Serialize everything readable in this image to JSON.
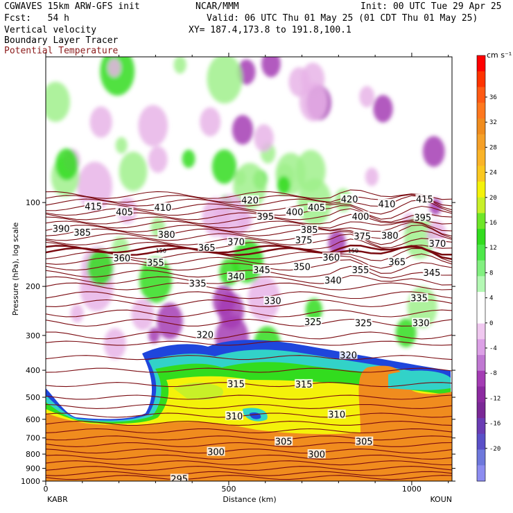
{
  "header": {
    "model": "CGWAVES 15km ARW-GFS init",
    "org": "NCAR/MMM",
    "init": "Init: 00 UTC Tue 29 Apr 25",
    "fcst": "Fcst:   54 h",
    "valid": "Valid: 06 UTC Thu 01 May 25 (01 CDT Thu 01 May 25)",
    "field1": "Vertical velocity",
    "field2": "Boundary Layer Tracer",
    "xy": "XY= 187.4,173.8 to 191.8,100.1",
    "field3": "Potential Temperature"
  },
  "colors": {
    "theta": "#7a0a10",
    "orange": "#f08c1e",
    "yellow": "#f4f20a",
    "green": "#32dc1e",
    "cyan": "#32d2c8",
    "blue": "#1e46dc",
    "purple": "#a43cb4",
    "pink": "#e8b4e8",
    "lightgreen": "#a0f08c"
  },
  "chart_data": {
    "type": "heatmap",
    "title": "",
    "xlabel": "Distance (km)",
    "ylabel": "Pressure (hPa), log scale",
    "xlim": [
      0,
      1110
    ],
    "ylim_log_pressure": [
      1000,
      30
    ],
    "x_ticks": [
      0,
      500,
      1000
    ],
    "y_ticks": [
      100,
      200,
      300,
      400,
      500,
      600,
      700,
      800,
      900,
      1000
    ],
    "endpoints": {
      "left": "KABR",
      "right": "KOUN"
    },
    "colorbar": {
      "units": "cm s⁻¹",
      "ticks": [
        36,
        32,
        28,
        24,
        20,
        16,
        12,
        8,
        4,
        0,
        -4,
        -8,
        -12,
        -16,
        -20
      ],
      "colors": [
        "#ff0000",
        "#ff3300",
        "#ff5a14",
        "#ff781e",
        "#f08c1e",
        "#f5a028",
        "#fab428",
        "#fac820",
        "#f4f20a",
        "#c8f028",
        "#6ee628",
        "#32dc1e",
        "#4ee84a",
        "#82f080",
        "#b4f8b4",
        "#ffffff",
        "#ffffff",
        "#f0c8f0",
        "#dca0e6",
        "#c078d2",
        "#a43cb4",
        "#8c2aa0",
        "#7a2896",
        "#6a3cb4",
        "#5a50c8",
        "#6e78dc",
        "#8c8cf0"
      ]
    },
    "theta_labels": [
      {
        "v": "415",
        "x": 130,
        "p": 103
      },
      {
        "v": "405",
        "x": 215,
        "p": 108
      },
      {
        "v": "410",
        "x": 320,
        "p": 104
      },
      {
        "v": "420",
        "x": 558,
        "p": 98
      },
      {
        "v": "395",
        "x": 600,
        "p": 112
      },
      {
        "v": "400",
        "x": 680,
        "p": 108
      },
      {
        "v": "405",
        "x": 740,
        "p": 104
      },
      {
        "v": "420",
        "x": 830,
        "p": 97
      },
      {
        "v": "410",
        "x": 932,
        "p": 101
      },
      {
        "v": "415",
        "x": 1035,
        "p": 97
      },
      {
        "v": "400",
        "x": 860,
        "p": 112
      },
      {
        "v": "395",
        "x": 1030,
        "p": 113
      },
      {
        "v": "390",
        "x": 42,
        "p": 124
      },
      {
        "v": "385",
        "x": 100,
        "p": 128
      },
      {
        "v": "380",
        "x": 330,
        "p": 130
      },
      {
        "v": "385",
        "x": 720,
        "p": 125
      },
      {
        "v": "375",
        "x": 865,
        "p": 132
      },
      {
        "v": "380",
        "x": 940,
        "p": 131
      },
      {
        "v": "375",
        "x": 705,
        "p": 136
      },
      {
        "v": "370",
        "x": 520,
        "p": 138
      },
      {
        "v": "365",
        "x": 440,
        "p": 145
      },
      {
        "v": "370",
        "x": 1070,
        "p": 140
      },
      {
        "v": "360",
        "x": 208,
        "p": 158
      },
      {
        "v": "355",
        "x": 300,
        "p": 164
      },
      {
        "v": "360",
        "x": 780,
        "p": 157
      },
      {
        "v": "350",
        "x": 700,
        "p": 170
      },
      {
        "v": "345",
        "x": 590,
        "p": 174
      },
      {
        "v": "355",
        "x": 860,
        "p": 174
      },
      {
        "v": "365",
        "x": 960,
        "p": 163
      },
      {
        "v": "345",
        "x": 1055,
        "p": 178
      },
      {
        "v": "340",
        "x": 520,
        "p": 184
      },
      {
        "v": "340",
        "x": 785,
        "p": 190
      },
      {
        "v": "335",
        "x": 415,
        "p": 195
      },
      {
        "v": "330",
        "x": 620,
        "p": 225
      },
      {
        "v": "335",
        "x": 1020,
        "p": 220
      },
      {
        "v": "325",
        "x": 730,
        "p": 268
      },
      {
        "v": "325",
        "x": 868,
        "p": 270
      },
      {
        "v": "330",
        "x": 1025,
        "p": 270
      },
      {
        "v": "320",
        "x": 435,
        "p": 298
      },
      {
        "v": "320",
        "x": 827,
        "p": 352
      },
      {
        "v": "315",
        "x": 520,
        "p": 447
      },
      {
        "v": "315",
        "x": 705,
        "p": 448
      },
      {
        "v": "310",
        "x": 515,
        "p": 583
      },
      {
        "v": "310",
        "x": 795,
        "p": 576
      },
      {
        "v": "305",
        "x": 650,
        "p": 720
      },
      {
        "v": "305",
        "x": 870,
        "p": 720
      },
      {
        "v": "300",
        "x": 465,
        "p": 784
      },
      {
        "v": "300",
        "x": 740,
        "p": 800
      },
      {
        "v": "295",
        "x": 365,
        "p": 980
      }
    ],
    "theta_150_labels": [
      {
        "v": "150",
        "x": 315
      },
      {
        "v": "150",
        "x": 840
      }
    ]
  }
}
